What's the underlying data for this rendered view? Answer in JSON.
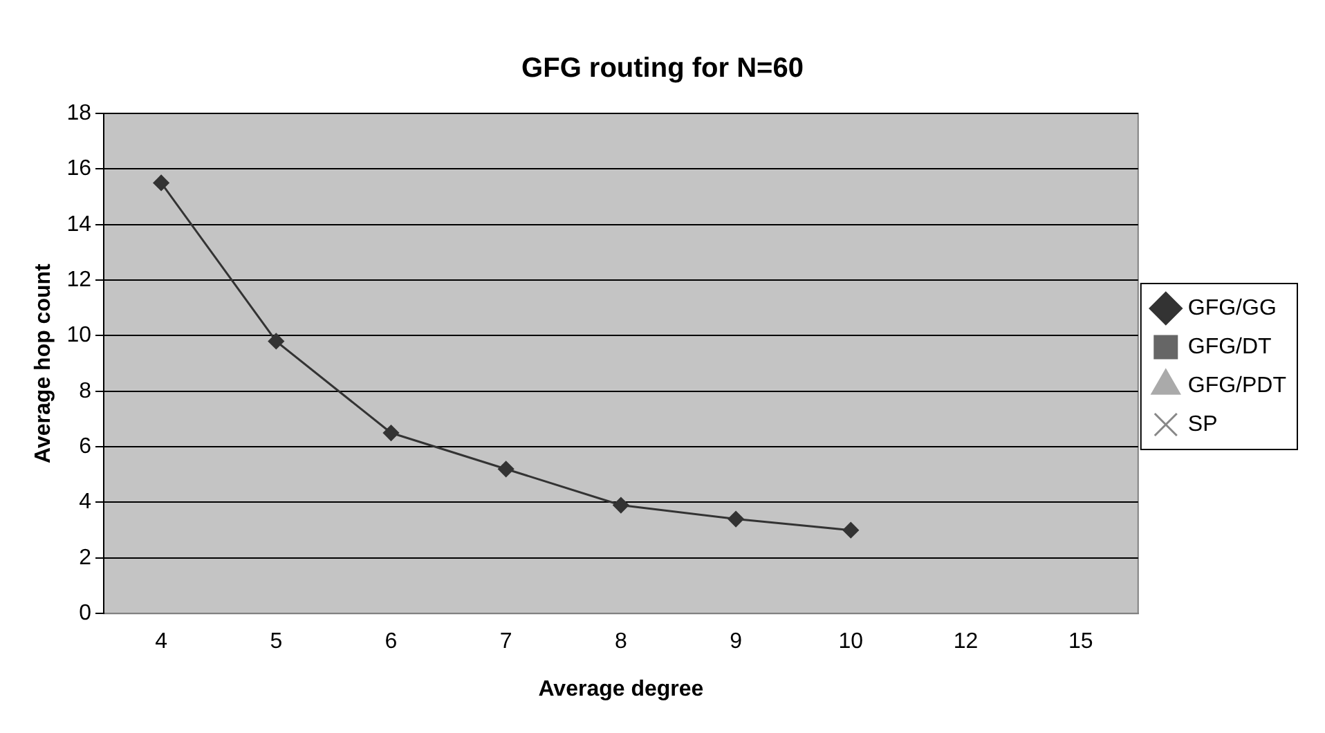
{
  "chart_data": {
    "type": "line",
    "title": "GFG routing for N=60",
    "xlabel": "Average degree",
    "ylabel": "Average hop count",
    "categories": [
      "4",
      "5",
      "6",
      "7",
      "8",
      "9",
      "10",
      "12",
      "15"
    ],
    "series": [
      {
        "name": "GFG/GG",
        "color": "#333333",
        "marker": "diamond",
        "values": [
          15.5,
          9.8,
          6.5,
          5.2,
          3.9,
          3.4,
          3.0,
          null,
          null
        ]
      },
      {
        "name": "GFG/DT",
        "color": "#666666",
        "marker": "square",
        "values": [
          null,
          null,
          null,
          null,
          null,
          null,
          null,
          null,
          null
        ]
      },
      {
        "name": "GFG/PDT",
        "color": "#aaaaaa",
        "marker": "triangle",
        "values": [
          null,
          null,
          null,
          null,
          null,
          null,
          null,
          null,
          null
        ]
      },
      {
        "name": "SP",
        "color": "#888888",
        "marker": "cross",
        "values": [
          null,
          null,
          null,
          null,
          null,
          null,
          null,
          null,
          null
        ]
      }
    ],
    "ylim": [
      0,
      18
    ],
    "yticks": [
      0,
      2,
      4,
      6,
      8,
      10,
      12,
      14,
      16,
      18
    ],
    "grid": "y",
    "legend": "right",
    "line_style": "solid"
  }
}
